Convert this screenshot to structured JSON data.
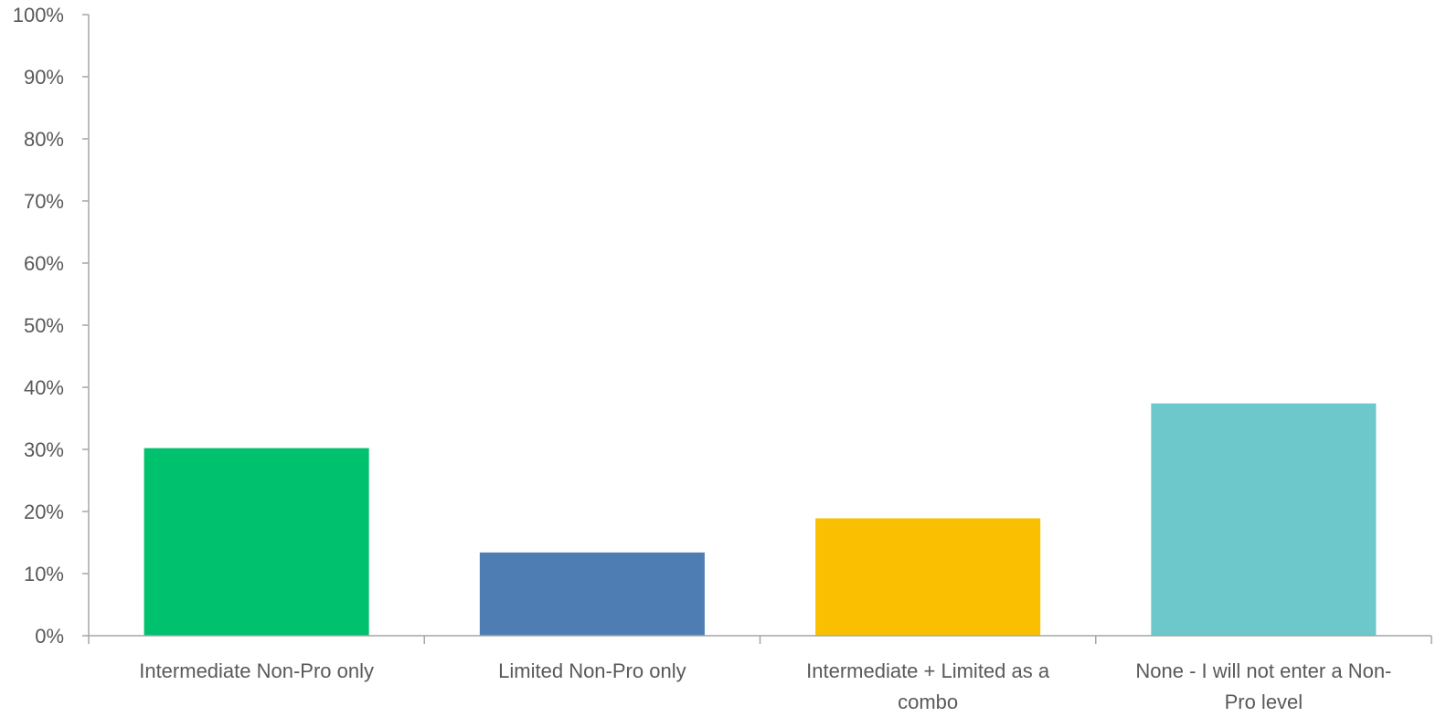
{
  "chart_data": {
    "type": "bar",
    "categories": [
      [
        "Intermediate Non-Pro only"
      ],
      [
        "Limited Non-Pro only"
      ],
      [
        "Intermediate + Limited as a",
        "combo"
      ],
      [
        "None - I will not enter a Non-",
        "Pro level"
      ]
    ],
    "values": [
      30.2,
      13.4,
      18.9,
      37.4
    ],
    "colors": [
      "#00c16e",
      "#4e7db4",
      "#f9bf00",
      "#6cc8cb"
    ],
    "ylim": [
      0,
      100
    ],
    "yticks": [
      {
        "value": 0,
        "label": "0%"
      },
      {
        "value": 10,
        "label": "10%"
      },
      {
        "value": 20,
        "label": "20%"
      },
      {
        "value": 30,
        "label": "30%"
      },
      {
        "value": 40,
        "label": "40%"
      },
      {
        "value": 50,
        "label": "50%"
      },
      {
        "value": 60,
        "label": "60%"
      },
      {
        "value": 70,
        "label": "70%"
      },
      {
        "value": 80,
        "label": "80%"
      },
      {
        "value": 90,
        "label": "90%"
      },
      {
        "value": 100,
        "label": "100%"
      }
    ],
    "grid": false,
    "legend": "none"
  }
}
